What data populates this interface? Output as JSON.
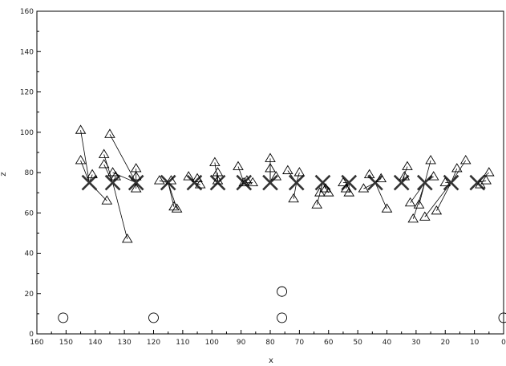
{
  "chart_data": {
    "type": "scatter",
    "title": "",
    "xlabel": "x",
    "ylabel": "z",
    "xlim": [
      160,
      0
    ],
    "ylim": [
      0,
      160
    ],
    "x_reversed": true,
    "grid": false,
    "xticks": [
      "160",
      "150",
      "140",
      "130",
      "120",
      "110",
      "100",
      "90",
      "80",
      "70",
      "60",
      "50",
      "40",
      "30",
      "20",
      "10",
      "0"
    ],
    "yticks": [
      "0",
      "20",
      "40",
      "60",
      "80",
      "100",
      "120",
      "140",
      "160"
    ],
    "series": [
      {
        "marker": "x-cross",
        "points": [
          [
            142,
            75
          ],
          [
            134,
            75
          ],
          [
            126,
            75
          ],
          [
            115,
            75
          ],
          [
            106,
            75
          ],
          [
            98,
            75
          ],
          [
            89,
            75
          ],
          [
            80,
            75
          ],
          [
            71,
            75
          ],
          [
            62,
            75
          ],
          [
            53,
            75
          ],
          [
            44,
            75
          ],
          [
            35,
            75
          ],
          [
            27,
            75
          ],
          [
            18,
            75
          ],
          [
            9,
            75
          ]
        ]
      },
      {
        "marker": "triangle",
        "points": [
          [
            145,
            101
          ],
          [
            145,
            86
          ],
          [
            141,
            79
          ],
          [
            137,
            89
          ],
          [
            137,
            84
          ],
          [
            136,
            66
          ],
          [
            135,
            99
          ],
          [
            134,
            80
          ],
          [
            133,
            78
          ],
          [
            129,
            47
          ],
          [
            126,
            82
          ],
          [
            126,
            78
          ],
          [
            126,
            72
          ],
          [
            118,
            76
          ],
          [
            114,
            76
          ],
          [
            113,
            63
          ],
          [
            112,
            62
          ],
          [
            108,
            78
          ],
          [
            105,
            77
          ],
          [
            104,
            74
          ],
          [
            99,
            85
          ],
          [
            98,
            80
          ],
          [
            98,
            76
          ],
          [
            91,
            83
          ],
          [
            89,
            75
          ],
          [
            88,
            76
          ],
          [
            86,
            75
          ],
          [
            80,
            87
          ],
          [
            80,
            82
          ],
          [
            78,
            78
          ],
          [
            74,
            81
          ],
          [
            72,
            67
          ],
          [
            70,
            80
          ],
          [
            64,
            64
          ],
          [
            63,
            70
          ],
          [
            61,
            72
          ],
          [
            60,
            70
          ],
          [
            55,
            75
          ],
          [
            54,
            72
          ],
          [
            53,
            70
          ],
          [
            48,
            72
          ],
          [
            46,
            79
          ],
          [
            42,
            77
          ],
          [
            40,
            62
          ],
          [
            34,
            78
          ],
          [
            33,
            83
          ],
          [
            32,
            65
          ],
          [
            31,
            57
          ],
          [
            29,
            64
          ],
          [
            27,
            58
          ],
          [
            25,
            86
          ],
          [
            24,
            78
          ],
          [
            23,
            61
          ],
          [
            20,
            75
          ],
          [
            16,
            82
          ],
          [
            13,
            86
          ],
          [
            8,
            74
          ],
          [
            6,
            76
          ],
          [
            5,
            80
          ]
        ]
      },
      {
        "marker": "circle",
        "points": [
          [
            151,
            8
          ],
          [
            120,
            8
          ],
          [
            76,
            8
          ],
          [
            76,
            21
          ],
          [
            0,
            8
          ]
        ]
      }
    ],
    "links": [
      [
        [
          142,
          75
        ],
        [
          145,
          101
        ]
      ],
      [
        [
          142,
          75
        ],
        [
          145,
          86
        ]
      ],
      [
        [
          142,
          75
        ],
        [
          141,
          79
        ]
      ],
      [
        [
          142,
          75
        ],
        [
          136,
          66
        ]
      ],
      [
        [
          134,
          75
        ],
        [
          137,
          89
        ]
      ],
      [
        [
          134,
          75
        ],
        [
          137,
          84
        ]
      ],
      [
        [
          134,
          75
        ],
        [
          129,
          47
        ]
      ],
      [
        [
          134,
          75
        ],
        [
          133,
          78
        ]
      ],
      [
        [
          126,
          75
        ],
        [
          135,
          99
        ]
      ],
      [
        [
          126,
          75
        ],
        [
          134,
          80
        ]
      ],
      [
        [
          126,
          75
        ],
        [
          126,
          82
        ]
      ],
      [
        [
          126,
          75
        ],
        [
          126,
          72
        ]
      ],
      [
        [
          115,
          75
        ],
        [
          113,
          63
        ]
      ],
      [
        [
          115,
          75
        ],
        [
          112,
          62
        ]
      ],
      [
        [
          115,
          75
        ],
        [
          118,
          76
        ]
      ],
      [
        [
          115,
          75
        ],
        [
          114,
          76
        ]
      ],
      [
        [
          106,
          75
        ],
        [
          108,
          78
        ]
      ],
      [
        [
          106,
          75
        ],
        [
          105,
          77
        ]
      ],
      [
        [
          106,
          75
        ],
        [
          104,
          74
        ]
      ],
      [
        [
          98,
          75
        ],
        [
          99,
          85
        ]
      ],
      [
        [
          98,
          75
        ],
        [
          98,
          80
        ]
      ],
      [
        [
          98,
          75
        ],
        [
          98,
          76
        ]
      ],
      [
        [
          89,
          75
        ],
        [
          91,
          83
        ]
      ],
      [
        [
          89,
          75
        ],
        [
          88,
          76
        ]
      ],
      [
        [
          89,
          75
        ],
        [
          86,
          75
        ]
      ],
      [
        [
          80,
          75
        ],
        [
          80,
          87
        ]
      ],
      [
        [
          80,
          75
        ],
        [
          80,
          82
        ]
      ],
      [
        [
          80,
          75
        ],
        [
          78,
          78
        ]
      ],
      [
        [
          71,
          75
        ],
        [
          74,
          81
        ]
      ],
      [
        [
          71,
          75
        ],
        [
          72,
          67
        ]
      ],
      [
        [
          71,
          75
        ],
        [
          70,
          80
        ]
      ],
      [
        [
          62,
          75
        ],
        [
          64,
          64
        ]
      ],
      [
        [
          62,
          75
        ],
        [
          63,
          70
        ]
      ],
      [
        [
          62,
          75
        ],
        [
          61,
          72
        ]
      ],
      [
        [
          62,
          75
        ],
        [
          60,
          70
        ]
      ],
      [
        [
          53,
          75
        ],
        [
          55,
          75
        ]
      ],
      [
        [
          53,
          75
        ],
        [
          54,
          72
        ]
      ],
      [
        [
          53,
          75
        ],
        [
          53,
          70
        ]
      ],
      [
        [
          44,
          75
        ],
        [
          48,
          72
        ]
      ],
      [
        [
          44,
          75
        ],
        [
          46,
          79
        ]
      ],
      [
        [
          44,
          75
        ],
        [
          42,
          77
        ]
      ],
      [
        [
          44,
          75
        ],
        [
          40,
          62
        ]
      ],
      [
        [
          35,
          75
        ],
        [
          34,
          78
        ]
      ],
      [
        [
          35,
          75
        ],
        [
          33,
          83
        ]
      ],
      [
        [
          27,
          75
        ],
        [
          32,
          65
        ]
      ],
      [
        [
          27,
          75
        ],
        [
          31,
          57
        ]
      ],
      [
        [
          27,
          75
        ],
        [
          29,
          64
        ]
      ],
      [
        [
          27,
          75
        ],
        [
          25,
          86
        ]
      ],
      [
        [
          27,
          75
        ],
        [
          24,
          78
        ]
      ],
      [
        [
          18,
          75
        ],
        [
          27,
          58
        ]
      ],
      [
        [
          18,
          75
        ],
        [
          23,
          61
        ]
      ],
      [
        [
          18,
          75
        ],
        [
          20,
          75
        ]
      ],
      [
        [
          18,
          75
        ],
        [
          16,
          82
        ]
      ],
      [
        [
          18,
          75
        ],
        [
          13,
          86
        ]
      ],
      [
        [
          9,
          75
        ],
        [
          8,
          74
        ]
      ],
      [
        [
          9,
          75
        ],
        [
          6,
          76
        ]
      ],
      [
        [
          9,
          75
        ],
        [
          5,
          80
        ]
      ]
    ]
  }
}
